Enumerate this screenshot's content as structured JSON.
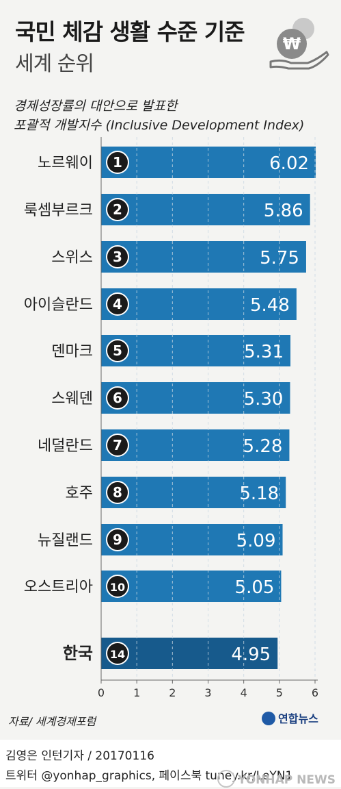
{
  "header": {
    "title": "국민 체감 생활 수준 기준",
    "subtitle": "세계 순위",
    "desc_line1": "경제성장률의 대안으로 발표한",
    "desc_line2": "포괄적 개발지수 (Inclusive Development Index)",
    "icon": "won-coin-hand-icon"
  },
  "chart_data": {
    "type": "bar",
    "orientation": "horizontal",
    "categories": [
      "노르웨이",
      "룩셈부르크",
      "스위스",
      "아이슬란드",
      "덴마크",
      "스웨덴",
      "네덜란드",
      "호주",
      "뉴질랜드",
      "오스트리아",
      "한국"
    ],
    "ranks": [
      "1",
      "2",
      "3",
      "4",
      "5",
      "6",
      "7",
      "8",
      "9",
      "10",
      "14"
    ],
    "values": [
      6.02,
      5.86,
      5.75,
      5.48,
      5.31,
      5.3,
      5.28,
      5.18,
      5.09,
      5.05,
      4.95
    ],
    "value_labels": [
      "6.02",
      "5.86",
      "5.75",
      "5.48",
      "5.31",
      "5.30",
      "5.28",
      "5.18",
      "5.09",
      "5.05",
      "4.95"
    ],
    "xlim": [
      0,
      6
    ],
    "xticks": [
      "0",
      "1",
      "2",
      "3",
      "4",
      "5",
      "6"
    ],
    "grid": true,
    "colors": {
      "bar": "#1f78b4",
      "highlight": "#175a8c",
      "badge": "#1a1a1a"
    },
    "highlight_index": 10
  },
  "footer": {
    "source": "자료/ 세계경제포럼",
    "brand": "연합뉴스",
    "credit": "김영은 인턴기자 / 20170116",
    "social": "트위터 @yonhap_graphics, 페이스북 tuney.kr/LeYN1",
    "watermark": "YONHAP NEWS"
  }
}
